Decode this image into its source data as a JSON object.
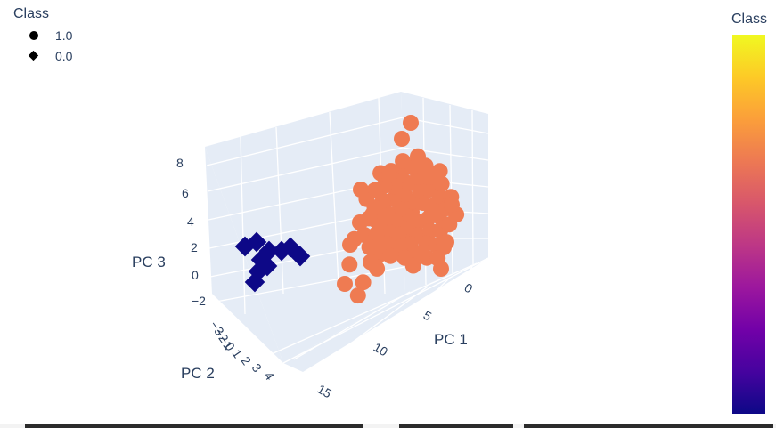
{
  "chart_data": {
    "type": "scatter3d",
    "legend": {
      "title": "Class",
      "placement": "top-left",
      "entries": [
        {
          "label": "1.0",
          "symbol": "circle"
        },
        {
          "label": "0.0",
          "symbol": "diamond"
        }
      ]
    },
    "colorbar": {
      "title": "Class",
      "colors": [
        "#0d0887",
        "#46039f",
        "#7201a8",
        "#9c179e",
        "#bd3786",
        "#d8576b",
        "#ed7953",
        "#fb9f3a",
        "#fdca26",
        "#f0f921"
      ]
    },
    "axes": {
      "x": {
        "title": "PC 1",
        "ticks": [
          "0",
          "5",
          "10",
          "15"
        ]
      },
      "y": {
        "title": "PC 2",
        "ticks": [
          "−3",
          "−2",
          "−1",
          "0",
          "1",
          "2",
          "3",
          "4"
        ]
      },
      "z": {
        "title": "PC 3",
        "ticks": [
          "−2",
          "0",
          "2",
          "4",
          "6",
          "8"
        ]
      }
    },
    "series": [
      {
        "name": "1.0",
        "symbol": "circle",
        "color": "#ef7b52",
        "note_points": "dense cluster around PC1≈0..5, PC3≈0..8",
        "x": [
          1,
          2,
          2.5,
          3,
          1.5,
          2,
          3.5,
          4,
          2.2,
          1.8,
          2.8,
          3.2,
          2.6,
          1.2,
          0.8,
          4.2,
          3.8,
          2.4,
          2.9,
          1.6,
          5,
          4.5,
          3.1,
          2.2,
          0.5,
          1,
          6
        ],
        "y": [
          0,
          0.5,
          -0.5,
          1,
          1.5,
          -1,
          0.2,
          -0.3,
          2,
          -1.5,
          0.8,
          -0.8,
          1.2,
          0.3,
          -0.2,
          1,
          -1,
          0.5,
          -0.5,
          2.2,
          0.1,
          1.8,
          -1.8,
          0.9,
          2.5,
          -2,
          0
        ],
        "z": [
          2,
          3,
          1.5,
          2.5,
          4,
          3.5,
          1,
          0.5,
          5,
          2,
          6,
          3,
          4.5,
          1,
          7.5,
          2,
          3,
          5.5,
          4,
          3,
          0,
          6.5,
          1.5,
          2.5,
          3,
          1,
          1
        ]
      },
      {
        "name": "0.0",
        "symbol": "diamond",
        "color": "#0d0887",
        "note_points": "small cluster near PC1≈14, PC3≈1..3",
        "x": [
          13,
          13.5,
          14,
          14.5,
          13.2,
          13.8,
          14.2,
          13.6,
          14.8
        ],
        "y": [
          -1,
          -0.5,
          0,
          0.5,
          1,
          -1.5,
          1.5,
          0.2,
          -0.2
        ],
        "z": [
          2,
          2.5,
          2,
          1.8,
          1,
          0,
          0.5,
          1.2,
          2.2
        ]
      }
    ]
  }
}
